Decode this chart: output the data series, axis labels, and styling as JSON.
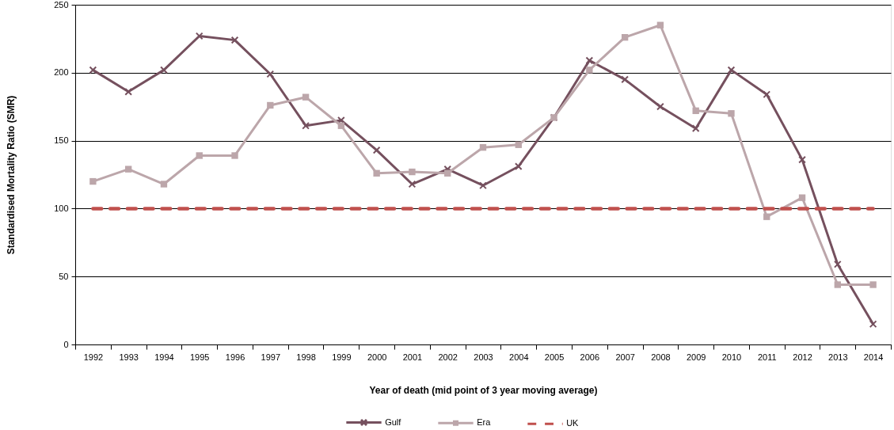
{
  "chart_data": {
    "type": "line",
    "categories": [
      "1992",
      "1993",
      "1994",
      "1995",
      "1996",
      "1997",
      "1998",
      "1999",
      "2000",
      "2001",
      "2002",
      "2003",
      "2004",
      "2005",
      "2006",
      "2007",
      "2008",
      "2009",
      "2010",
      "2011",
      "2012",
      "2013",
      "2014"
    ],
    "series": [
      {
        "name": "Gulf",
        "color": "#75505e",
        "marker": "cross",
        "line_style": "solid",
        "values": [
          202,
          186,
          202,
          227,
          224,
          199,
          161,
          165,
          143,
          118,
          129,
          117,
          131,
          167,
          209,
          195,
          175,
          159,
          202,
          184,
          136,
          59,
          15
        ]
      },
      {
        "name": "Era",
        "color": "#bca6aa",
        "marker": "square",
        "line_style": "solid",
        "values": [
          120,
          129,
          118,
          139,
          139,
          176,
          182,
          161,
          126,
          127,
          126,
          145,
          147,
          167,
          202,
          226,
          235,
          172,
          170,
          94,
          108,
          44,
          44
        ]
      },
      {
        "name": "UK",
        "color": "#c0504d",
        "marker": "none",
        "line_style": "dashed",
        "values": [
          100,
          100,
          100,
          100,
          100,
          100,
          100,
          100,
          100,
          100,
          100,
          100,
          100,
          100,
          100,
          100,
          100,
          100,
          100,
          100,
          100,
          100,
          100
        ]
      }
    ],
    "xlabel": "Year of death (mid point of 3 year moving average)",
    "ylabel": "Standardised Mortality Ratio (SMR)",
    "ylim": [
      0,
      250
    ],
    "yticks": [
      0,
      50,
      100,
      150,
      200,
      250
    ],
    "grid": "y",
    "legend": "bottom"
  }
}
